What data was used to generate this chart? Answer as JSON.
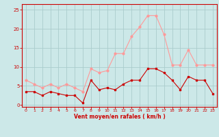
{
  "hours": [
    0,
    1,
    2,
    3,
    4,
    5,
    6,
    7,
    8,
    9,
    10,
    11,
    12,
    13,
    14,
    15,
    16,
    17,
    18,
    19,
    20,
    21,
    22,
    23
  ],
  "wind_avg": [
    3.5,
    3.5,
    2.5,
    3.5,
    3.0,
    2.5,
    2.5,
    0.5,
    6.5,
    4.0,
    4.5,
    4.0,
    5.5,
    6.5,
    6.5,
    9.5,
    9.5,
    8.5,
    6.5,
    4.0,
    7.5,
    6.5,
    6.5,
    3.0
  ],
  "wind_gust": [
    6.5,
    5.5,
    4.5,
    5.5,
    4.5,
    5.5,
    4.5,
    3.5,
    9.5,
    8.5,
    9.0,
    13.5,
    13.5,
    18.0,
    20.5,
    23.5,
    23.5,
    18.5,
    10.5,
    10.5,
    14.5,
    10.5,
    10.5,
    10.5
  ],
  "avg_color": "#cc0000",
  "gust_color": "#ff9999",
  "bg_color": "#cce8e8",
  "grid_color": "#aacccc",
  "axis_color": "#cc0000",
  "xlabel": "Vent moyen/en rafales ( km/h )",
  "yticks": [
    0,
    5,
    10,
    15,
    20,
    25
  ],
  "ylim": [
    -0.5,
    26.5
  ],
  "xlim": [
    -0.5,
    23.5
  ]
}
